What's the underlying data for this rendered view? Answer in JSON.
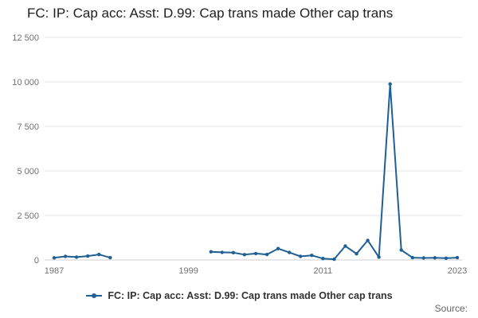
{
  "header": {
    "title": "FC: IP: Cap acc: Asst: D.99: Cap trans made Other cap trans"
  },
  "legend": {
    "label": "FC: IP: Cap acc: Asst: D.99: Cap trans made Other cap trans"
  },
  "footer": {
    "source": "Source:"
  },
  "colors": {
    "line": "#206095",
    "grid": "#e6e6e6",
    "axis": "#cccccc",
    "tick_text": "#707071",
    "title_text": "#202020",
    "legend_text": "#333333",
    "source_text": "#666666"
  },
  "chart_data": {
    "type": "line",
    "title": "FC: IP: Cap acc: Asst: D.99: Cap trans made Other cap trans",
    "xlabel": "",
    "ylabel": "",
    "xlim": [
      1987,
      2023
    ],
    "ylim": [
      0,
      12500
    ],
    "xticks": [
      1987,
      1999,
      2011,
      2023
    ],
    "yticks": [
      0,
      2500,
      5000,
      7500,
      10000,
      12500
    ],
    "ytick_labels": [
      "0",
      "2 500",
      "5 000",
      "7 500",
      "10 000",
      "12 500"
    ],
    "grid": "horizontal",
    "legend_position": "bottom",
    "series": [
      {
        "name": "FC: IP: Cap acc: Asst: D.99: Cap trans made Other cap trans",
        "color": "#206095",
        "marker": "circle",
        "segments": [
          [
            [
              1987,
              120
            ],
            [
              1988,
              200
            ],
            [
              1989,
              160
            ],
            [
              1990,
              220
            ],
            [
              1991,
              310
            ],
            [
              1992,
              130
            ]
          ],
          [
            [
              2001,
              460
            ],
            [
              2002,
              430
            ],
            [
              2003,
              410
            ],
            [
              2004,
              300
            ],
            [
              2005,
              360
            ],
            [
              2006,
              310
            ],
            [
              2007,
              640
            ],
            [
              2008,
              420
            ],
            [
              2009,
              200
            ],
            [
              2010,
              260
            ],
            [
              2011,
              80
            ],
            [
              2012,
              40
            ],
            [
              2013,
              780
            ],
            [
              2014,
              350
            ],
            [
              2015,
              1100
            ],
            [
              2016,
              160
            ],
            [
              2017,
              9880
            ],
            [
              2018,
              560
            ],
            [
              2019,
              130
            ],
            [
              2020,
              110
            ],
            [
              2021,
              120
            ],
            [
              2022,
              100
            ],
            [
              2023,
              130
            ]
          ]
        ]
      }
    ]
  }
}
